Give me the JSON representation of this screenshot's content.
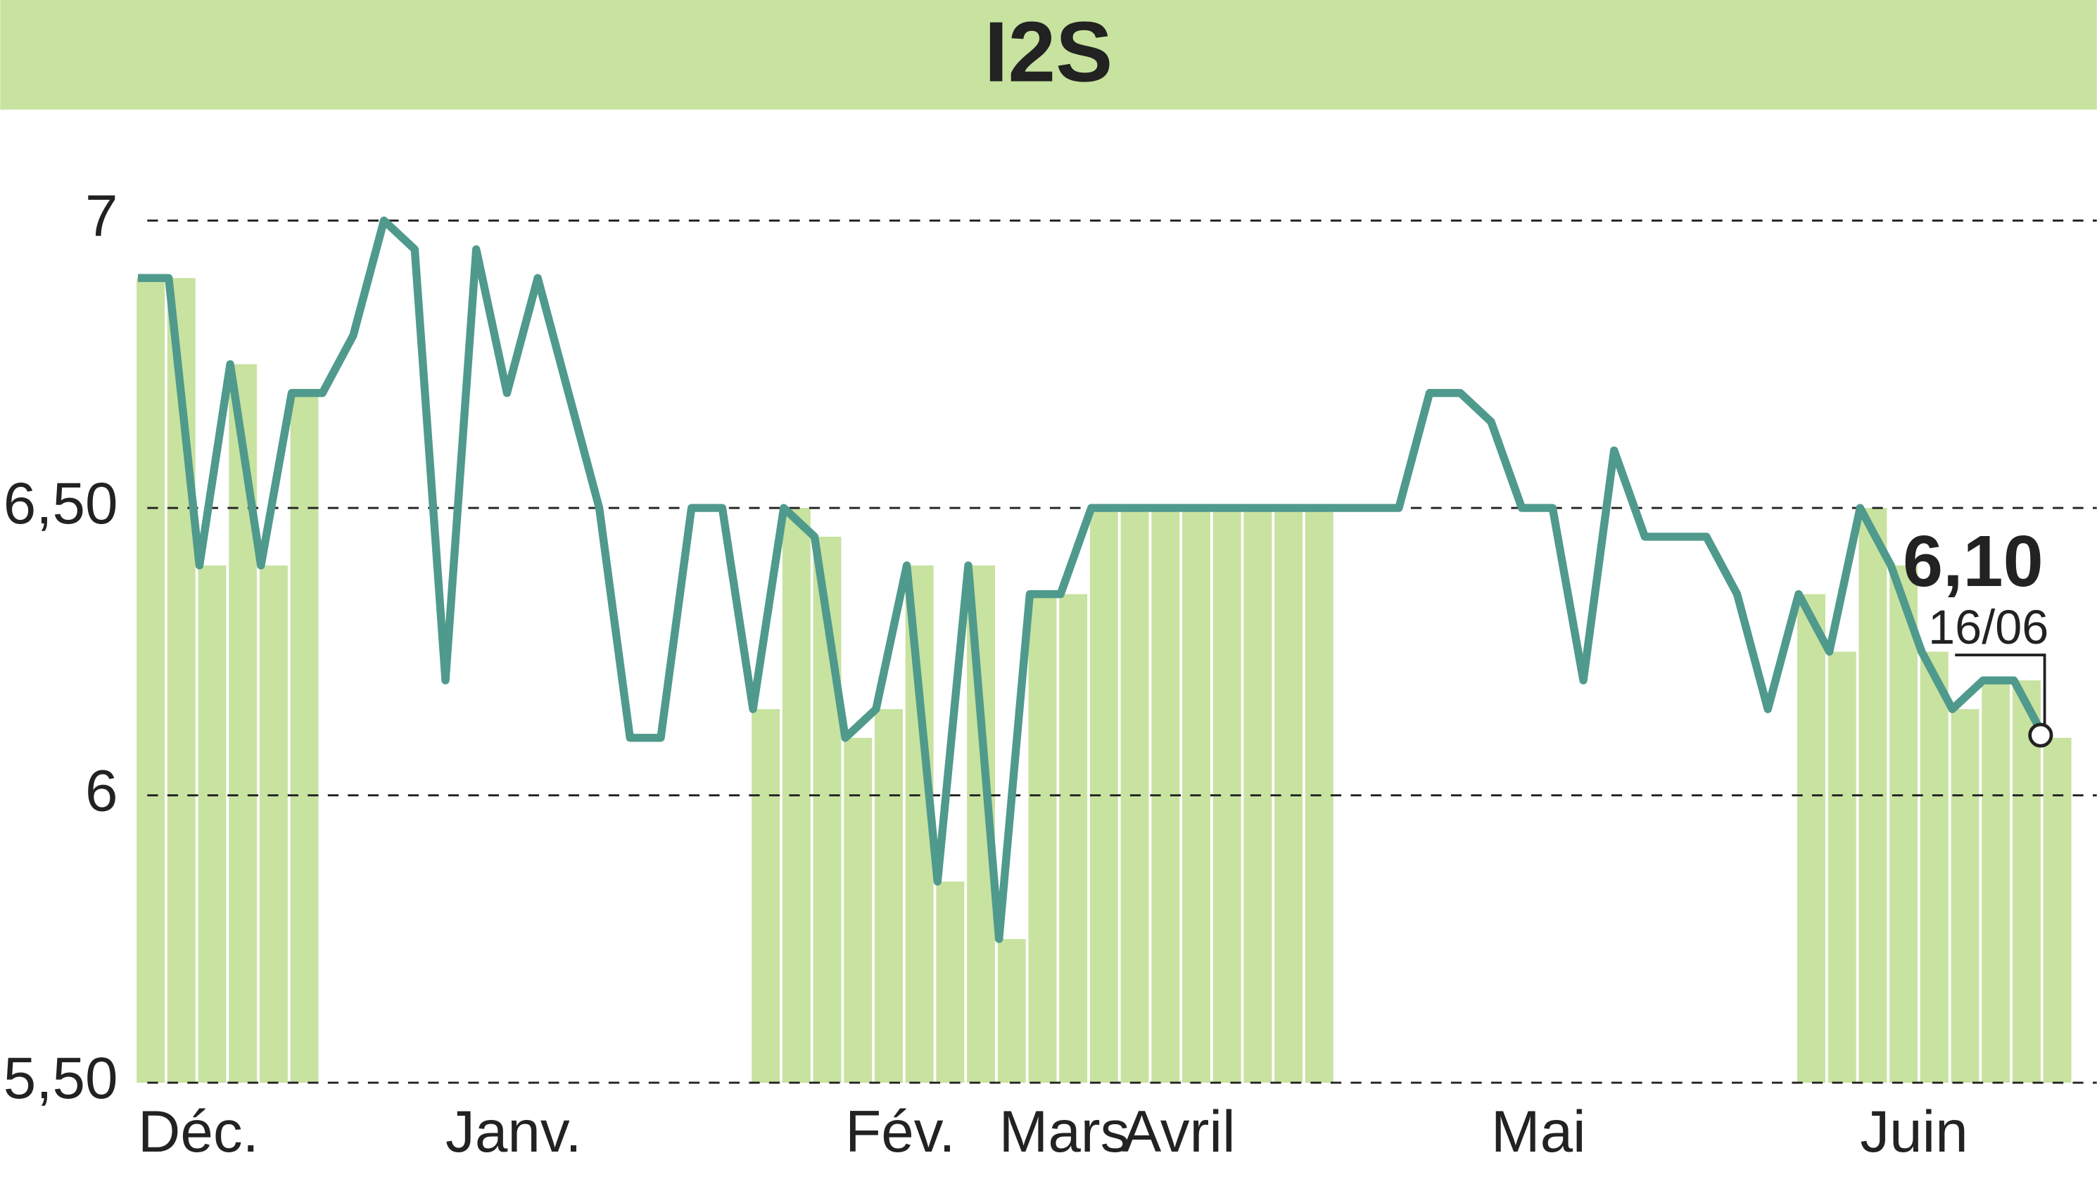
{
  "chart_data": {
    "type": "line",
    "title": "I2S",
    "categories": [
      "Déc.",
      null,
      null,
      null,
      null,
      null,
      null,
      null,
      null,
      null,
      "Janv.",
      null,
      null,
      null,
      null,
      null,
      null,
      null,
      null,
      null,
      null,
      null,
      null,
      "Fév.",
      null,
      null,
      null,
      null,
      "Mars",
      null,
      null,
      null,
      "Avril",
      null,
      null,
      null,
      null,
      null,
      null,
      null,
      null,
      null,
      null,
      null,
      "Mai",
      null,
      null,
      null,
      null,
      null,
      null,
      null,
      null,
      null,
      null,
      null,
      "Juin",
      null,
      null,
      null,
      null,
      null,
      null
    ],
    "values": [
      6.9,
      6.9,
      6.4,
      6.75,
      6.4,
      6.7,
      6.7,
      6.8,
      7,
      6.95,
      6.2,
      6.95,
      6.7,
      6.9,
      6.7,
      6.5,
      6.1,
      6.1,
      6.5,
      6.5,
      6.15,
      6.5,
      6.45,
      6.1,
      6.15,
      6.4,
      5.85,
      6.4,
      5.75,
      6.35,
      6.35,
      6.5,
      6.5,
      6.5,
      6.5,
      6.5,
      6.5,
      6.5,
      6.5,
      6.5,
      6.5,
      6.5,
      6.7,
      6.7,
      6.65,
      6.5,
      6.5,
      6.2,
      6.6,
      6.45,
      6.45,
      6.45,
      6.35,
      6.15,
      6.35,
      6.25,
      6.5,
      6.4,
      6.25,
      6.15,
      6.2,
      6.2,
      6.1
    ],
    "bar_values": [
      6.9,
      6.9,
      6.4,
      6.75,
      6.4,
      6.7,
      null,
      null,
      null,
      null,
      null,
      null,
      null,
      null,
      null,
      null,
      null,
      null,
      null,
      null,
      6.15,
      6.5,
      6.45,
      6.1,
      6.15,
      6.4,
      5.85,
      6.4,
      5.75,
      6.35,
      6.35,
      6.5,
      6.5,
      6.5,
      6.5,
      6.5,
      6.5,
      6.5,
      6.5,
      null,
      null,
      null,
      null,
      null,
      null,
      null,
      null,
      null,
      null,
      null,
      null,
      null,
      null,
      null,
      6.35,
      6.25,
      6.5,
      6.4,
      6.25,
      6.15,
      6.2,
      6.2,
      6.1
    ],
    "color": "#4f9a8c",
    "bar_color": "#c8e2a0",
    "ylim": [
      5.5,
      7.1
    ],
    "yticks": [
      {
        "value": 5.5,
        "label": "5,50"
      },
      6,
      {
        "value": 6.5,
        "label": "6,50"
      },
      7
    ],
    "grid": true,
    "annotation": {
      "value": 6.1,
      "label": "6,10",
      "date": "16/06"
    }
  }
}
